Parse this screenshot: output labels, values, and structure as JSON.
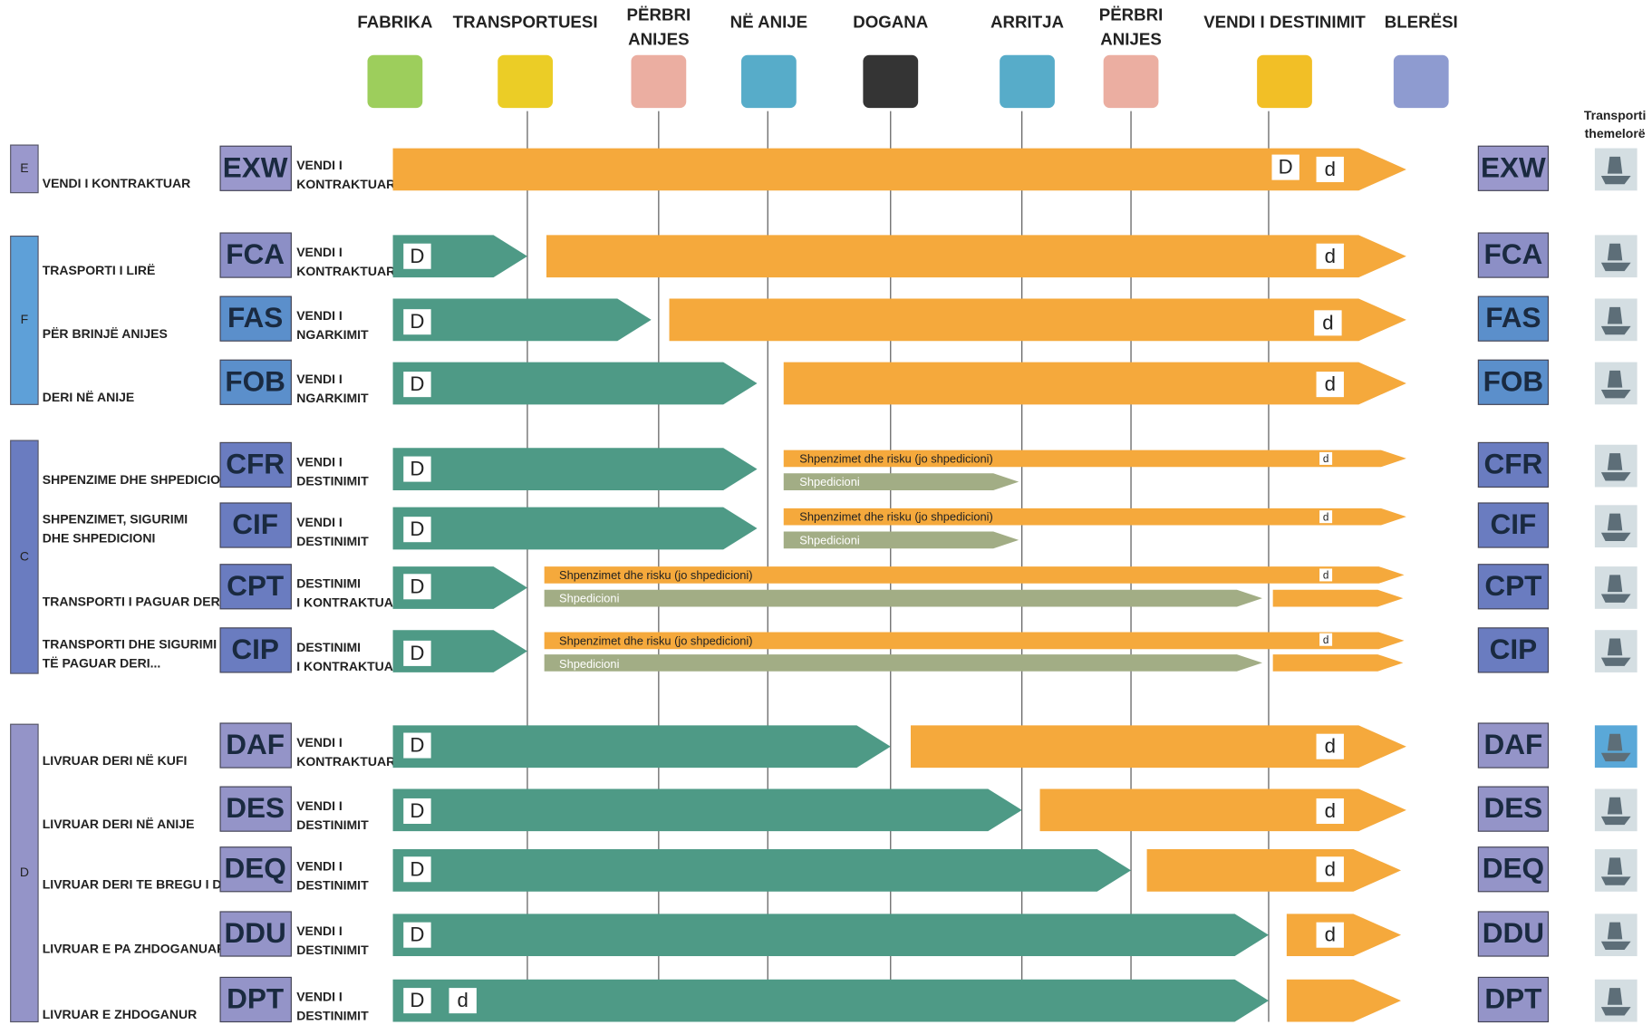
{
  "header": {
    "columns": [
      [
        "FABRIKA"
      ],
      [
        "TRANSPORTUESI"
      ],
      [
        "PËRBRI",
        "ANIJES"
      ],
      [
        "NË ANIJE"
      ],
      [
        "DOGANA"
      ],
      [
        "ARRITJA"
      ],
      [
        "PËRBRI",
        "ANIJES"
      ],
      [
        "VENDI I DESTINIMIT"
      ],
      [
        "BLERËSI"
      ]
    ],
    "transport_label": [
      "Transporti",
      "themelorë"
    ]
  },
  "groups": [
    {
      "letter": "E",
      "rows": [
        {
          "code": "EXW",
          "description": [
            "VENDI I KONTRAKTUAR"
          ],
          "place": [
            "VENDI I",
            "KONTRAKTUAR"
          ],
          "marks": [
            "D",
            "d"
          ]
        }
      ]
    },
    {
      "letter": "F",
      "rows": [
        {
          "code": "FCA",
          "description": [
            "TRASPORTI I LIRË"
          ],
          "place": [
            "VENDI I",
            "KONTRAKTUAR"
          ],
          "marks": [
            "D",
            "d"
          ]
        },
        {
          "code": "FAS",
          "description": [
            "PËR BRINJË ANIJES"
          ],
          "place": [
            "VENDI I",
            "NGARKIMIT"
          ],
          "marks": [
            "D",
            "d"
          ]
        },
        {
          "code": "FOB",
          "description": [
            "DERI NË ANIJE"
          ],
          "place": [
            "VENDI I",
            "NGARKIMIT"
          ],
          "marks": [
            "D",
            "d"
          ]
        }
      ]
    },
    {
      "letter": "C",
      "rows": [
        {
          "code": "CFR",
          "description": [
            "SHPENZIME DHE SHPEDICIONI"
          ],
          "place": [
            "VENDI I",
            "DESTINIMIT"
          ],
          "marks": [
            "D",
            "Shpenzimet dhe risku (jo shpedicioni)",
            "d",
            "Shpedicioni"
          ]
        },
        {
          "code": "CIF",
          "description": [
            "SHPENZIMET, SIGURIMI",
            "DHE SHPEDICIONI"
          ],
          "place": [
            "VENDI I",
            "DESTINIMIT"
          ],
          "marks": [
            "D",
            "Shpenzimet dhe risku (jo shpedicioni)",
            "d",
            "Shpedicioni"
          ]
        },
        {
          "code": "CPT",
          "description": [
            "TRANSPORTI I PAGUAR DERI..."
          ],
          "place": [
            "DESTINIMI",
            "I KONTRAKTUAR"
          ],
          "marks": [
            "D",
            "Shpenzimet dhe risku (jo shpedicioni)",
            "d",
            "Shpedicioni"
          ]
        },
        {
          "code": "CIP",
          "description": [
            "TRANSPORTI DHE SIGURIMI",
            "TË PAGUAR DERI..."
          ],
          "place": [
            "DESTINIMI",
            "I KONTRAKTUAR"
          ],
          "marks": [
            "D",
            "Shpenzimet dhe risku (jo shpedicioni)",
            "d",
            "Shpedicioni"
          ]
        }
      ]
    },
    {
      "letter": "D",
      "rows": [
        {
          "code": "DAF",
          "description": [
            "LIVRUAR DERI NË KUFI"
          ],
          "place": [
            "VENDI I",
            "KONTRAKTUAR"
          ],
          "marks": [
            "D",
            "d"
          ]
        },
        {
          "code": "DES",
          "description": [
            "LIVRUAR DERI NË ANIJE"
          ],
          "place": [
            "VENDI I",
            "DESTINIMIT"
          ],
          "marks": [
            "D",
            "d"
          ]
        },
        {
          "code": "DEQ",
          "description": [
            "LIVRUAR DERI TE BREGU I DETIT"
          ],
          "place": [
            "VENDI I",
            "DESTINIMIT"
          ],
          "marks": [
            "D",
            "d"
          ]
        },
        {
          "code": "DDU",
          "description": [
            "LIVRUAR E PA ZHDOGANUAR"
          ],
          "place": [
            "VENDI I",
            "DESTINIMIT"
          ],
          "marks": [
            "D",
            "d"
          ]
        },
        {
          "code": "DPT",
          "description": [
            "LIVRUAR E ZHDOGANUR"
          ],
          "place": [
            "VENDI I",
            "DESTINIMIT"
          ],
          "marks": [
            "D",
            "d"
          ]
        }
      ]
    }
  ]
}
